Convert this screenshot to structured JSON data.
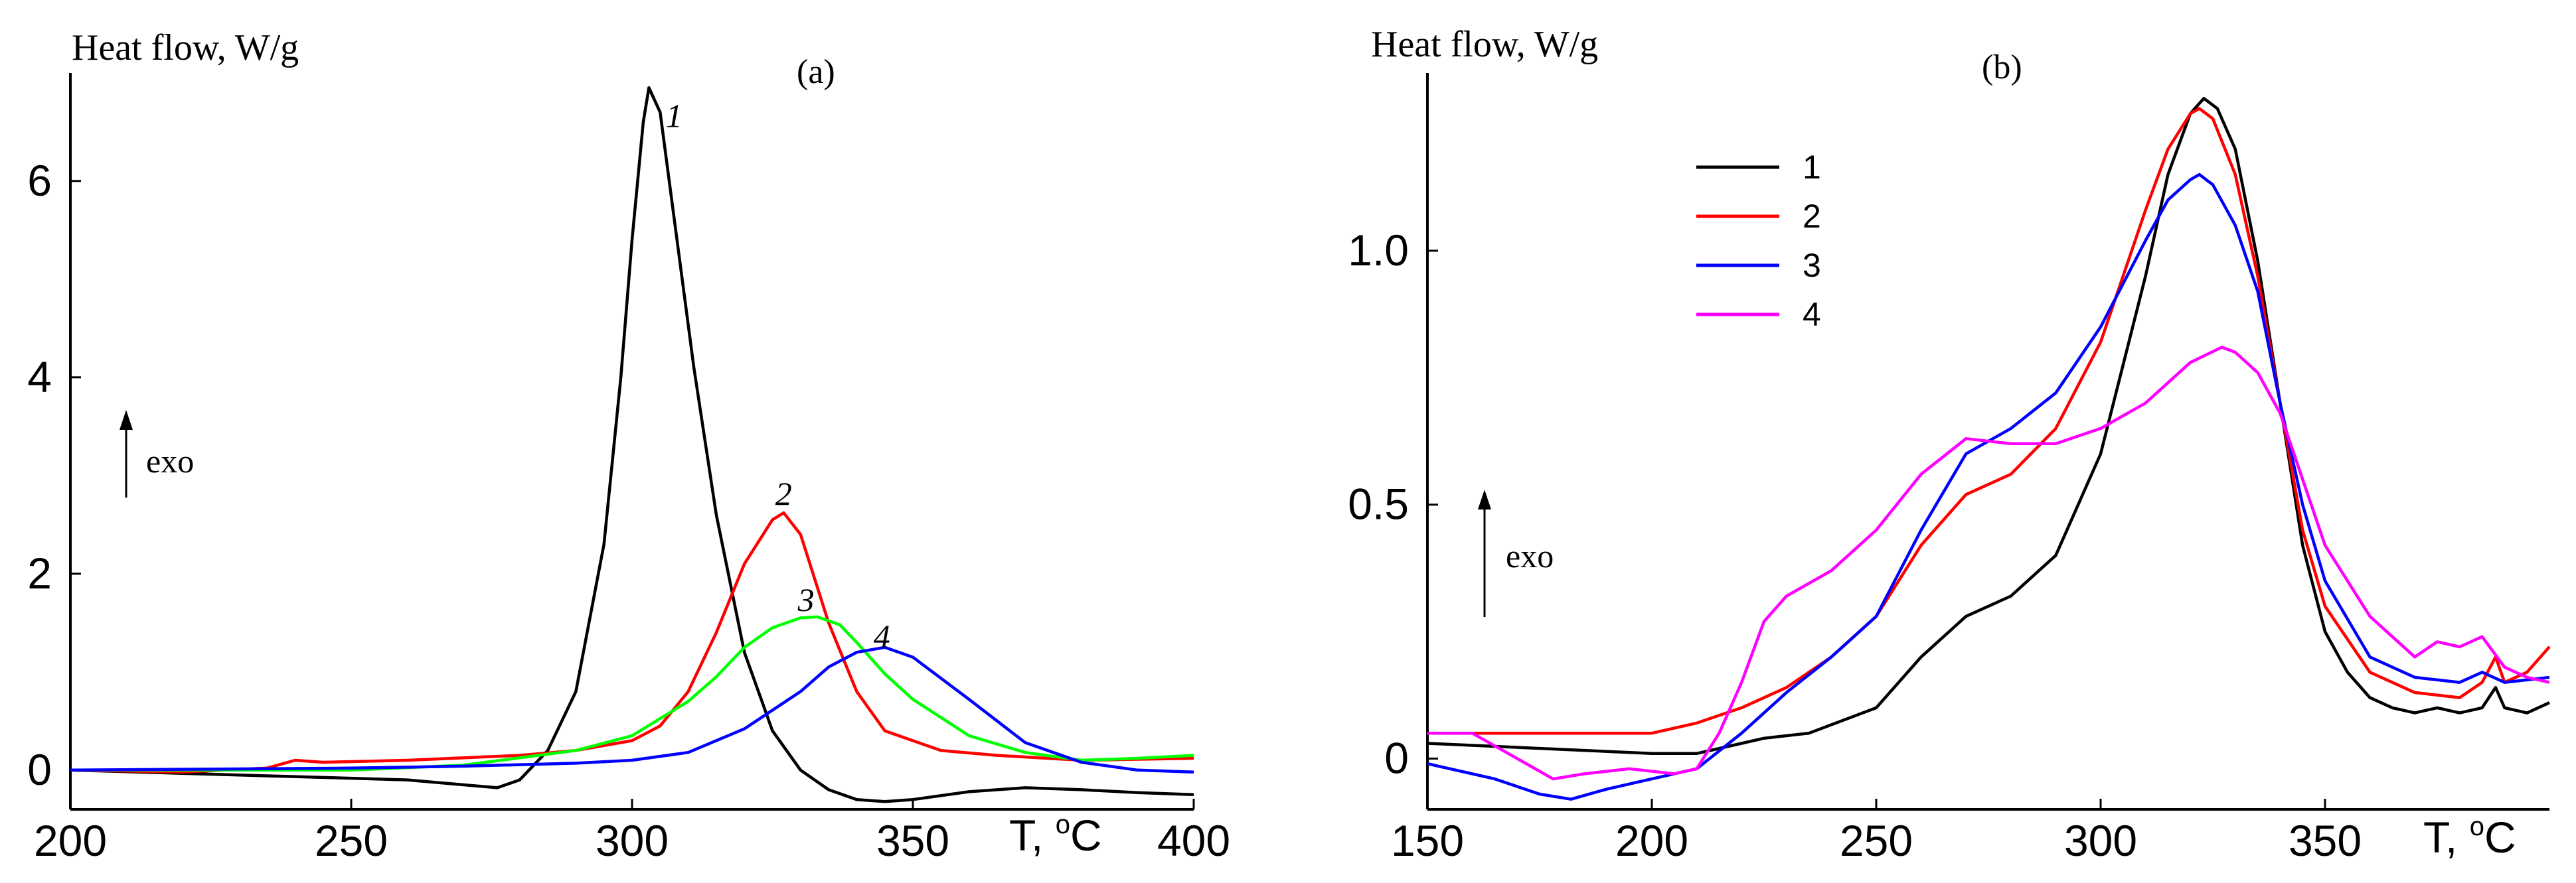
{
  "chart_data": [
    {
      "id": "a",
      "type": "line",
      "panel_label": "(a)",
      "ylabel": "Heat flow, W/g",
      "xlabel_main": "T, ",
      "xlabel_sup": "o",
      "xlabel_unit": "C",
      "xlim": [
        200,
        400
      ],
      "ylim": [
        -0.4,
        7.1
      ],
      "xticks": [
        200,
        250,
        300,
        350,
        400
      ],
      "yticks": [
        0,
        2,
        4,
        6
      ],
      "grid": false,
      "exo_label": "exo",
      "curve_labels": [
        {
          "text": "1",
          "x": 306,
          "y": 6.55
        },
        {
          "text": "2",
          "x": 325.5,
          "y": 2.7
        },
        {
          "text": "3",
          "x": 329.5,
          "y": 1.62
        },
        {
          "text": "4",
          "x": 343,
          "y": 1.25
        }
      ],
      "series": [
        {
          "name": "1",
          "color": "#000000",
          "x": [
            200,
            230,
            260,
            270,
            276,
            280,
            285,
            290,
            295,
            298,
            300,
            302,
            303,
            305,
            308,
            311,
            315,
            320,
            325,
            330,
            335,
            340,
            345,
            350,
            360,
            370,
            380,
            390,
            400
          ],
          "y": [
            0,
            -0.05,
            -0.1,
            -0.15,
            -0.18,
            -0.1,
            0.2,
            0.8,
            2.3,
            4.0,
            5.4,
            6.6,
            6.95,
            6.7,
            5.4,
            4.1,
            2.6,
            1.2,
            0.4,
            0.0,
            -0.2,
            -0.3,
            -0.32,
            -0.3,
            -0.22,
            -0.18,
            -0.2,
            -0.23,
            -0.25
          ]
        },
        {
          "name": "2",
          "color": "#ff0000",
          "x": [
            200,
            220,
            235,
            240,
            245,
            260,
            280,
            290,
            300,
            305,
            310,
            315,
            320,
            325,
            327,
            330,
            335,
            340,
            345,
            355,
            365,
            380,
            400
          ],
          "y": [
            0,
            -0.02,
            0.02,
            0.1,
            0.08,
            0.1,
            0.15,
            0.2,
            0.3,
            0.45,
            0.8,
            1.4,
            2.1,
            2.55,
            2.62,
            2.4,
            1.5,
            0.8,
            0.4,
            0.2,
            0.15,
            0.1,
            0.12
          ]
        },
        {
          "name": "3",
          "color": "#00ff00",
          "x": [
            200,
            220,
            250,
            270,
            290,
            300,
            310,
            315,
            320,
            325,
            330,
            333,
            337,
            340,
            345,
            350,
            360,
            370,
            380,
            390,
            400
          ],
          "y": [
            0,
            0,
            0,
            0.05,
            0.2,
            0.35,
            0.7,
            0.95,
            1.25,
            1.45,
            1.55,
            1.56,
            1.48,
            1.3,
            0.98,
            0.72,
            0.35,
            0.18,
            0.1,
            0.12,
            0.15
          ]
        },
        {
          "name": "4",
          "color": "#0000ff",
          "x": [
            200,
            250,
            270,
            290,
            300,
            310,
            320,
            330,
            335,
            340,
            345,
            350,
            360,
            370,
            380,
            390,
            400
          ],
          "y": [
            0,
            0.02,
            0.04,
            0.07,
            0.1,
            0.18,
            0.42,
            0.8,
            1.05,
            1.2,
            1.25,
            1.15,
            0.72,
            0.28,
            0.08,
            0.0,
            -0.02
          ]
        }
      ]
    },
    {
      "id": "b",
      "type": "line",
      "panel_label": "(b)",
      "ylabel": "Heat flow, W/g",
      "xlabel_main": "T, ",
      "xlabel_sup": "o",
      "xlabel_unit": "C",
      "xlim": [
        150,
        400
      ],
      "ylim": [
        -0.1,
        1.35
      ],
      "xticks": [
        150,
        200,
        250,
        300,
        350
      ],
      "yticks": [
        0,
        0.5,
        1.0
      ],
      "ytick_labels": [
        "0",
        "0.5",
        "1.0"
      ],
      "grid": false,
      "exo_label": "exo",
      "legend": [
        {
          "label": "1",
          "color": "#000000"
        },
        {
          "label": "2",
          "color": "#ff0000"
        },
        {
          "label": "3",
          "color": "#0000ff"
        },
        {
          "label": "4",
          "color": "#ff00ff"
        }
      ],
      "series": [
        {
          "name": "1",
          "color": "#000000",
          "x": [
            150,
            175,
            200,
            210,
            220,
            225,
            235,
            250,
            260,
            270,
            280,
            290,
            300,
            310,
            315,
            320,
            323,
            326,
            330,
            335,
            340,
            345,
            350,
            355,
            360,
            365,
            370,
            375,
            380,
            385,
            388,
            390,
            395,
            400
          ],
          "y": [
            0.03,
            0.02,
            0.01,
            0.01,
            0.03,
            0.04,
            0.05,
            0.1,
            0.2,
            0.28,
            0.32,
            0.4,
            0.6,
            0.95,
            1.15,
            1.27,
            1.3,
            1.28,
            1.2,
            0.98,
            0.7,
            0.42,
            0.25,
            0.17,
            0.12,
            0.1,
            0.09,
            0.1,
            0.09,
            0.1,
            0.14,
            0.1,
            0.09,
            0.11
          ]
        },
        {
          "name": "2",
          "color": "#ff0000",
          "x": [
            150,
            175,
            200,
            210,
            220,
            230,
            240,
            250,
            260,
            270,
            280,
            290,
            300,
            310,
            315,
            320,
            322,
            325,
            330,
            335,
            340,
            345,
            350,
            360,
            370,
            380,
            385,
            388,
            390,
            395,
            400
          ],
          "y": [
            0.05,
            0.05,
            0.05,
            0.07,
            0.1,
            0.14,
            0.2,
            0.28,
            0.42,
            0.52,
            0.56,
            0.65,
            0.82,
            1.08,
            1.2,
            1.27,
            1.28,
            1.26,
            1.15,
            0.95,
            0.7,
            0.45,
            0.3,
            0.17,
            0.13,
            0.12,
            0.15,
            0.2,
            0.15,
            0.17,
            0.22
          ]
        },
        {
          "name": "3",
          "color": "#0000ff",
          "x": [
            150,
            165,
            175,
            182,
            190,
            200,
            210,
            220,
            230,
            240,
            250,
            260,
            270,
            280,
            290,
            300,
            310,
            315,
            320,
            322,
            325,
            330,
            335,
            340,
            345,
            350,
            360,
            370,
            380,
            385,
            390,
            400
          ],
          "y": [
            -0.01,
            -0.04,
            -0.07,
            -0.08,
            -0.06,
            -0.04,
            -0.02,
            0.05,
            0.13,
            0.2,
            0.28,
            0.45,
            0.6,
            0.65,
            0.72,
            0.85,
            1.02,
            1.1,
            1.14,
            1.15,
            1.13,
            1.05,
            0.92,
            0.7,
            0.5,
            0.35,
            0.2,
            0.16,
            0.15,
            0.17,
            0.15,
            0.16
          ]
        },
        {
          "name": "4",
          "color": "#ff00ff",
          "x": [
            150,
            160,
            170,
            178,
            185,
            195,
            205,
            210,
            215,
            220,
            225,
            230,
            240,
            250,
            260,
            270,
            280,
            290,
            300,
            310,
            320,
            327,
            330,
            335,
            340,
            345,
            350,
            360,
            370,
            375,
            380,
            385,
            390,
            395,
            400
          ],
          "y": [
            0.05,
            0.05,
            0.0,
            -0.04,
            -0.03,
            -0.02,
            -0.03,
            -0.02,
            0.05,
            0.15,
            0.27,
            0.32,
            0.37,
            0.45,
            0.56,
            0.63,
            0.62,
            0.62,
            0.65,
            0.7,
            0.78,
            0.81,
            0.8,
            0.76,
            0.68,
            0.55,
            0.42,
            0.28,
            0.2,
            0.23,
            0.22,
            0.24,
            0.18,
            0.16,
            0.15
          ]
        }
      ]
    }
  ]
}
